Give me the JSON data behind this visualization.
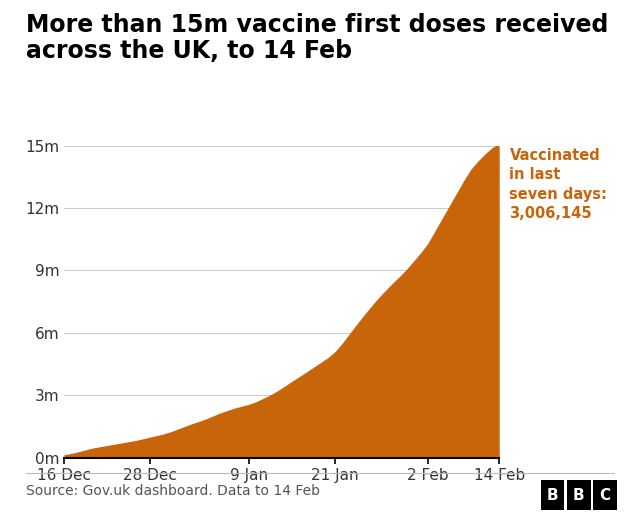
{
  "title_line1": "More than 15m vaccine first doses received",
  "title_line2": "across the UK, to 14 Feb",
  "fill_color": "#C8640A",
  "annotation_color": "#C8640A",
  "annotation_text": "Vaccinated\nin last\nseven days:\n3,006,145",
  "source_text": "Source: Gov.uk dashboard. Data to 14 Feb",
  "ytick_labels": [
    "0m",
    "3m",
    "6m",
    "9m",
    "12m",
    "15m"
  ],
  "ytick_values": [
    0,
    3000000,
    6000000,
    9000000,
    12000000,
    15000000
  ],
  "xtick_labels": [
    "16 Dec",
    "28 Dec",
    "9 Jan",
    "21 Jan",
    "2 Feb",
    "14 Feb"
  ],
  "xtick_days": [
    0,
    12,
    26,
    38,
    51,
    61
  ],
  "background_color": "#ffffff",
  "grid_color": "#cccccc",
  "axis_color": "#000000",
  "title_fontsize": 17,
  "label_fontsize": 11,
  "source_fontsize": 10,
  "data_x_days": [
    0,
    1,
    2,
    3,
    4,
    5,
    6,
    7,
    8,
    9,
    10,
    11,
    12,
    13,
    14,
    15,
    16,
    17,
    18,
    19,
    20,
    21,
    22,
    23,
    24,
    25,
    26,
    27,
    28,
    29,
    30,
    31,
    32,
    33,
    34,
    35,
    36,
    37,
    38,
    39,
    40,
    41,
    42,
    43,
    44,
    45,
    46,
    47,
    48,
    49,
    50,
    51,
    52,
    53,
    54,
    55,
    56,
    57,
    58,
    59,
    60,
    61
  ],
  "data_y_values": [
    137000,
    200000,
    280000,
    370000,
    460000,
    520000,
    580000,
    640000,
    700000,
    760000,
    820000,
    900000,
    980000,
    1060000,
    1140000,
    1250000,
    1380000,
    1510000,
    1640000,
    1750000,
    1880000,
    2020000,
    2160000,
    2280000,
    2390000,
    2480000,
    2570000,
    2700000,
    2860000,
    3030000,
    3230000,
    3450000,
    3680000,
    3900000,
    4120000,
    4350000,
    4580000,
    4810000,
    5100000,
    5500000,
    5950000,
    6400000,
    6830000,
    7250000,
    7650000,
    8020000,
    8370000,
    8700000,
    9050000,
    9450000,
    9850000,
    10300000,
    10900000,
    11500000,
    12100000,
    12700000,
    13300000,
    13850000,
    14250000,
    14600000,
    14900000,
    15100000
  ]
}
